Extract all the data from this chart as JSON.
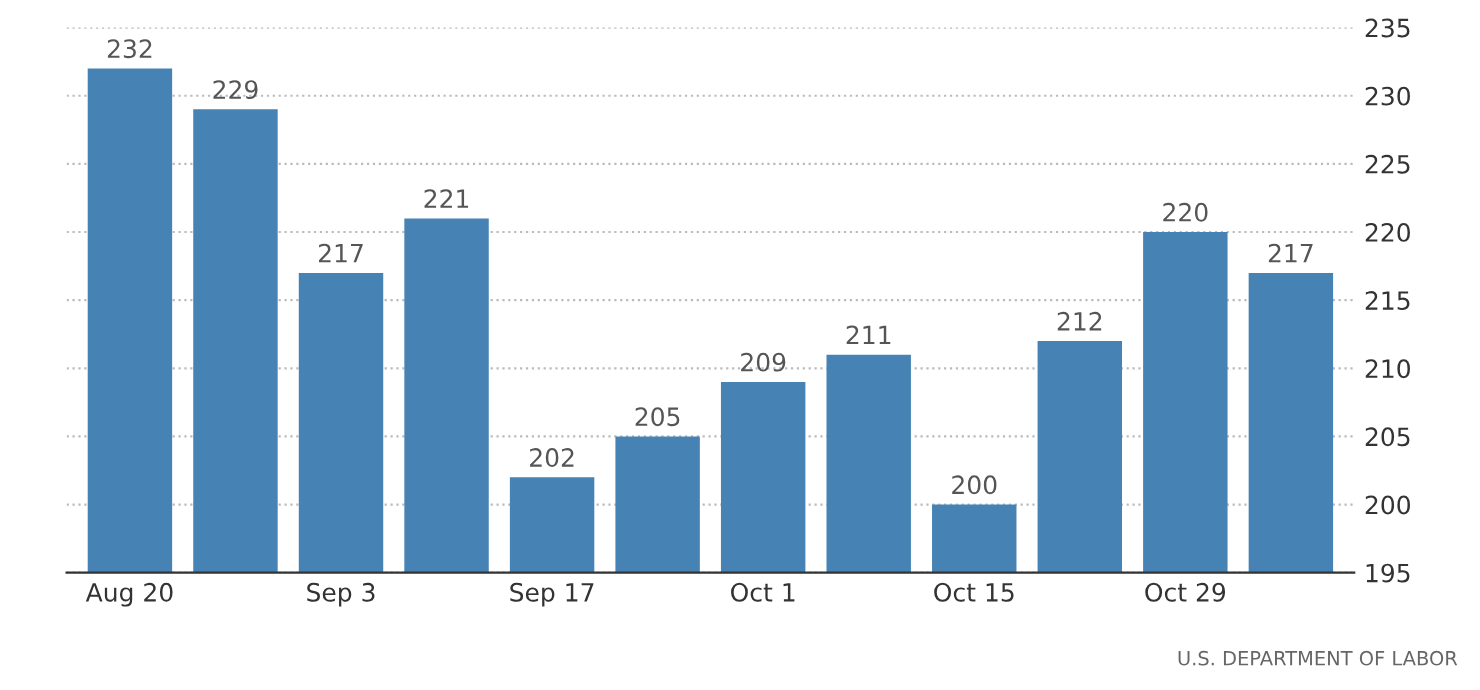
{
  "chart_data": {
    "type": "bar",
    "categories": [
      "Aug 20",
      null,
      "Sep 3",
      null,
      "Sep 17",
      null,
      "Oct 1",
      null,
      "Oct 15",
      null,
      "Oct 29",
      null
    ],
    "values": [
      232,
      229,
      217,
      221,
      202,
      205,
      209,
      211,
      200,
      212,
      220,
      217
    ],
    "color": "#4682b4",
    "ylim": [
      195,
      235
    ],
    "yticks": [
      195,
      200,
      205,
      210,
      215,
      220,
      225,
      230,
      235
    ],
    "grid": "y",
    "data_labels": true,
    "annotations": [
      "U.S. DEPARTMENT OF LABOR"
    ]
  }
}
